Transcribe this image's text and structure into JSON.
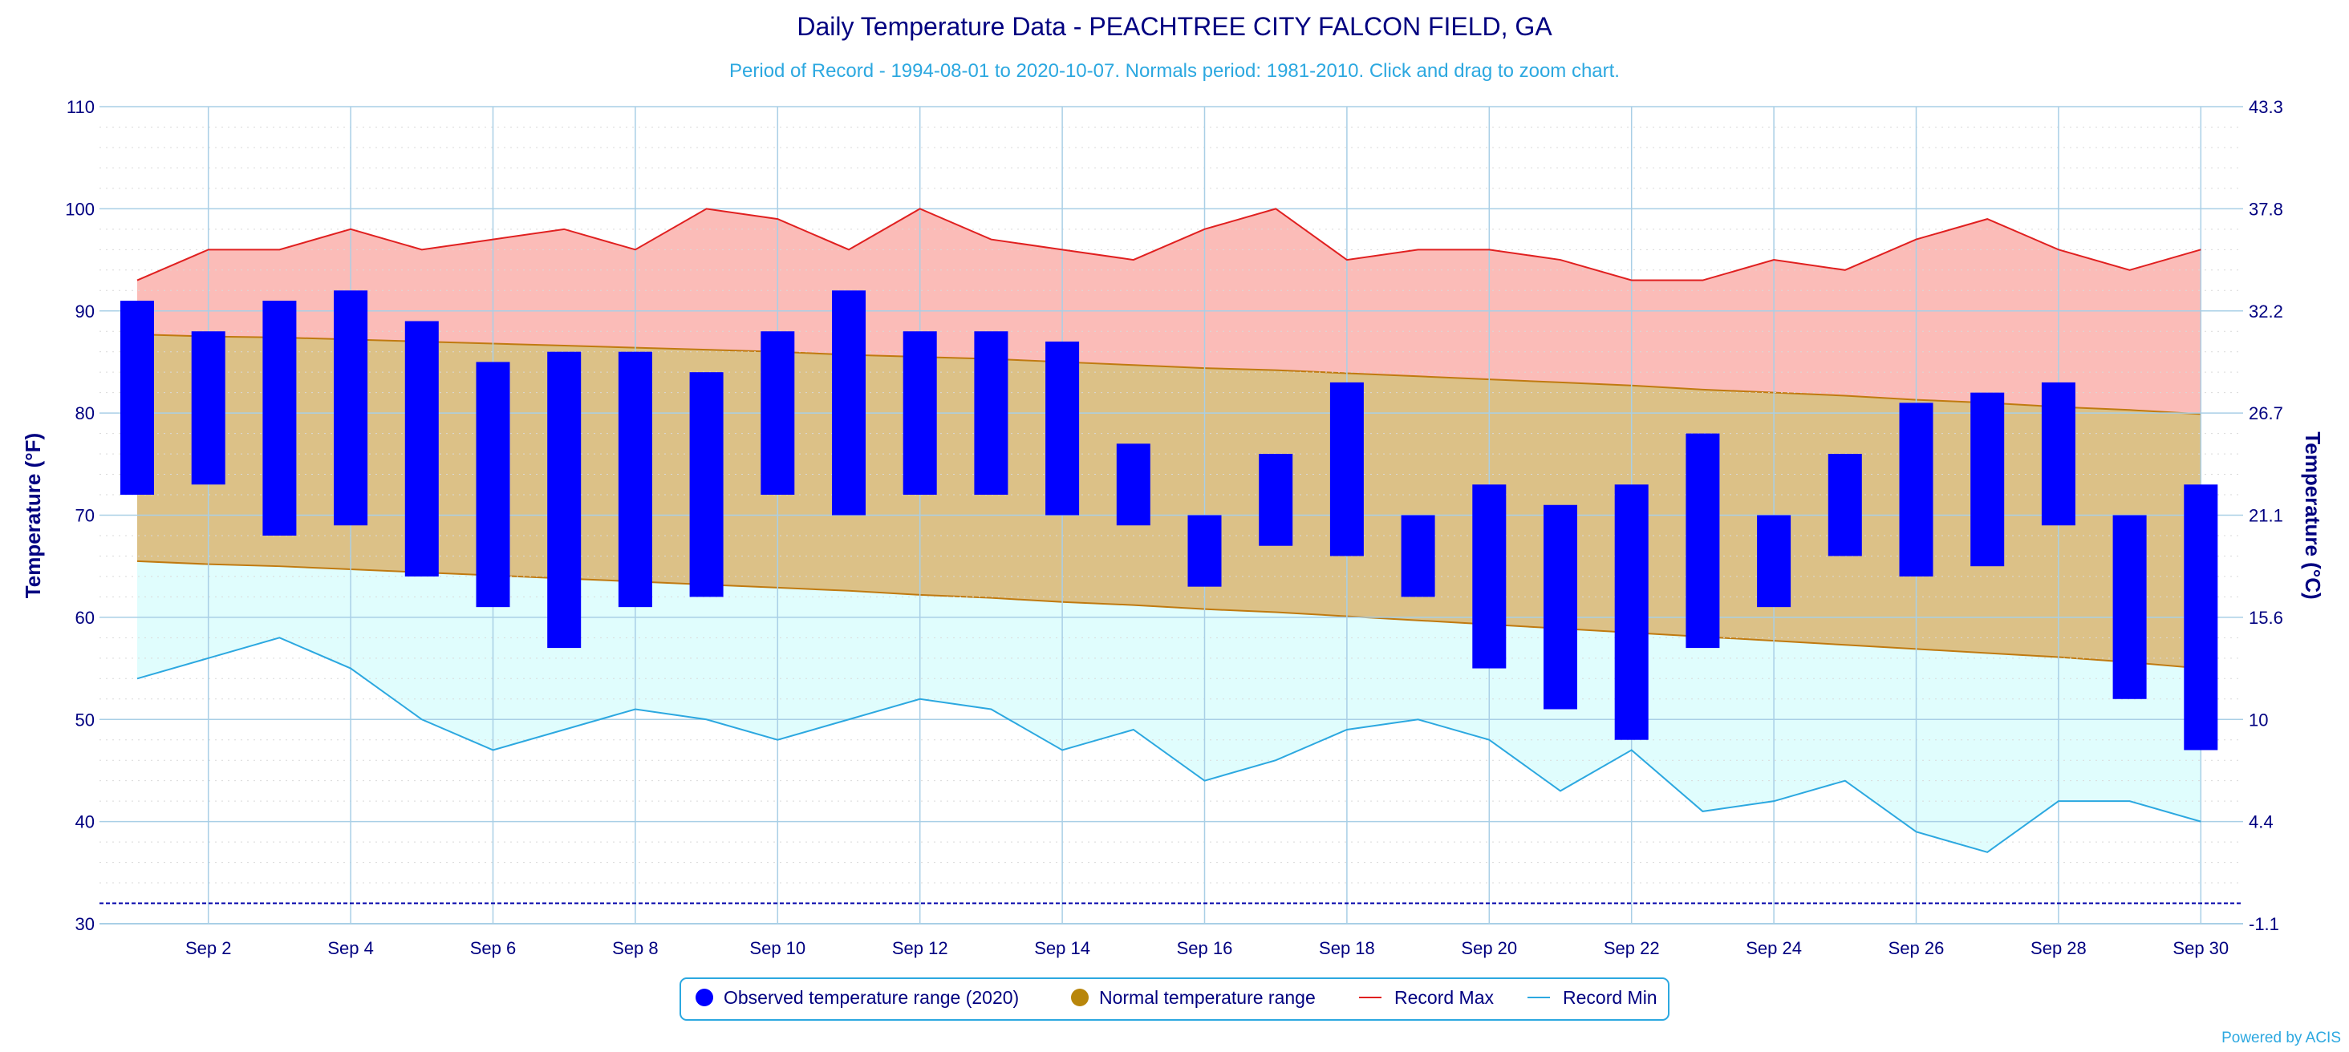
{
  "chart_data": {
    "type": "bar",
    "title": "Daily Temperature Data - PEACHTREE CITY FALCON FIELD, GA",
    "subtitle": "Period of Record - 1994-08-01 to 2020-10-07. Normals period: 1981-2010. Click and drag to zoom chart.",
    "ylabel": "Temperature (°F)",
    "ylabel_right": "Temperature (°C)",
    "ylim": [
      30,
      110
    ],
    "yticks": [
      "30",
      "40",
      "50",
      "60",
      "70",
      "80",
      "90",
      "100",
      "110"
    ],
    "yticks_right": [
      "-1.1",
      "4.4",
      "10",
      "15.6",
      "21.1",
      "26.7",
      "32.2",
      "37.8",
      "43.3"
    ],
    "x": [
      1,
      2,
      3,
      4,
      5,
      6,
      7,
      8,
      9,
      10,
      11,
      12,
      13,
      14,
      15,
      16,
      17,
      18,
      19,
      20,
      21,
      22,
      23,
      24,
      25,
      26,
      27,
      28,
      29,
      30
    ],
    "xticks": [
      {
        "day": 2,
        "label": "Sep 2"
      },
      {
        "day": 4,
        "label": "Sep 4"
      },
      {
        "day": 6,
        "label": "Sep 6"
      },
      {
        "day": 8,
        "label": "Sep 8"
      },
      {
        "day": 10,
        "label": "Sep 10"
      },
      {
        "day": 12,
        "label": "Sep 12"
      },
      {
        "day": 14,
        "label": "Sep 14"
      },
      {
        "day": 16,
        "label": "Sep 16"
      },
      {
        "day": 18,
        "label": "Sep 18"
      },
      {
        "day": 20,
        "label": "Sep 20"
      },
      {
        "day": 22,
        "label": "Sep 22"
      },
      {
        "day": 24,
        "label": "Sep 24"
      },
      {
        "day": 26,
        "label": "Sep 26"
      },
      {
        "day": 28,
        "label": "Sep 28"
      },
      {
        "day": 30,
        "label": "Sep 30"
      }
    ],
    "freezing_line": 32,
    "grid": true,
    "legend_position": "bottom-center",
    "series": [
      {
        "name": "Observed temperature range (2020)",
        "color": "#0000ff",
        "high": [
          91,
          88,
          91,
          92,
          89,
          85,
          86,
          86,
          84,
          88,
          92,
          88,
          88,
          87,
          77,
          70,
          76,
          83,
          70,
          73,
          71,
          73,
          78,
          70,
          76,
          81,
          82,
          83,
          70,
          73
        ],
        "low": [
          72,
          73,
          68,
          69,
          64,
          61,
          57,
          61,
          62,
          72,
          70,
          72,
          72,
          70,
          69,
          63,
          67,
          66,
          62,
          55,
          51,
          48,
          57,
          61,
          66,
          64,
          65,
          69,
          52,
          47
        ]
      },
      {
        "name": "Normal temperature range",
        "color": "#b8860b",
        "high": [
          87.7,
          87.5,
          87.4,
          87.2,
          87.0,
          86.8,
          86.6,
          86.4,
          86.2,
          86.0,
          85.7,
          85.5,
          85.3,
          85.0,
          84.7,
          84.4,
          84.2,
          83.9,
          83.6,
          83.3,
          83.0,
          82.7,
          82.3,
          82.0,
          81.7,
          81.3,
          81.0,
          80.6,
          80.3,
          79.9
        ],
        "low": [
          65.5,
          65.2,
          65.0,
          64.7,
          64.4,
          64.1,
          63.8,
          63.5,
          63.2,
          62.9,
          62.6,
          62.2,
          61.9,
          61.5,
          61.2,
          60.8,
          60.5,
          60.1,
          59.7,
          59.3,
          58.9,
          58.5,
          58.1,
          57.7,
          57.3,
          56.9,
          56.5,
          56.1,
          55.6,
          55.0
        ]
      },
      {
        "name": "Record Max",
        "color": "#e02020",
        "values": [
          93,
          96,
          96,
          98,
          96,
          97,
          98,
          96,
          100,
          99,
          96,
          100,
          97,
          96,
          95,
          98,
          100,
          95,
          96,
          96,
          95,
          93,
          93,
          95,
          94,
          97,
          99,
          96,
          94,
          96
        ]
      },
      {
        "name": "Record Min",
        "color": "#2ca8e0",
        "values": [
          54,
          56,
          58,
          55,
          50,
          47,
          49,
          51,
          50,
          48,
          50,
          52,
          51,
          47,
          49,
          44,
          46,
          49,
          50,
          48,
          43,
          47,
          41,
          42,
          44,
          39,
          37,
          42,
          42,
          40
        ]
      }
    ]
  },
  "credit": "Powered by ACIS"
}
